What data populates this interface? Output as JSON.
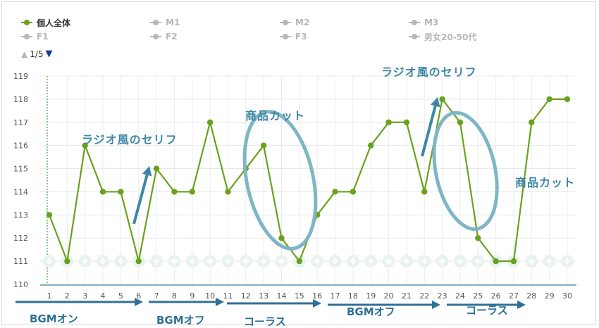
{
  "legend": {
    "items": [
      {
        "label": "個人全体",
        "active": true
      },
      {
        "label": "M1",
        "active": false
      },
      {
        "label": "M2",
        "active": false
      },
      {
        "label": "M3",
        "active": false
      },
      {
        "label": "F1",
        "active": false
      },
      {
        "label": "F2",
        "active": false
      },
      {
        "label": "F3",
        "active": false
      },
      {
        "label": "男女20-50代",
        "active": false
      }
    ],
    "pager": "1/5"
  },
  "colors": {
    "series": "#6aa11d",
    "inactive": "#b8b8b8",
    "annotation": "#3d87a6",
    "ellipse": "#7fb6c6",
    "axis_line": "#3d87a6",
    "timeline_arrow": "#2f7096",
    "pager_down": "#1a3aa0"
  },
  "chart_data": {
    "type": "line",
    "x": [
      1,
      2,
      3,
      4,
      5,
      6,
      7,
      8,
      9,
      10,
      11,
      12,
      13,
      14,
      15,
      16,
      17,
      18,
      19,
      20,
      21,
      22,
      23,
      24,
      25,
      26,
      27,
      28,
      29,
      30
    ],
    "series": [
      {
        "name": "個人全体",
        "values": [
          113,
          111,
          116,
          114,
          114,
          111,
          115,
          114,
          114,
          117,
          114,
          115,
          116,
          112,
          111,
          113,
          114,
          114,
          116,
          117,
          117,
          114,
          118,
          117,
          112,
          111,
          111,
          117,
          118,
          118
        ]
      }
    ],
    "ylim": [
      110,
      119
    ],
    "yticks": [
      "110",
      "111",
      "112",
      "113",
      "114",
      "115",
      "116",
      "117",
      "118",
      "119"
    ],
    "xticks": [
      "1",
      "2",
      "3",
      "4",
      "5",
      "6",
      "7",
      "8",
      "9",
      "10",
      "11",
      "12",
      "13",
      "14",
      "15",
      "16",
      "17",
      "18",
      "19",
      "20",
      "21",
      "22",
      "23",
      "24",
      "25",
      "26",
      "27",
      "28",
      "29",
      "30"
    ],
    "grid": true,
    "legend_position": "top-left",
    "annotations": {
      "texts": [
        "ラジオ風のセリフ",
        "商品カット",
        "ラジオ風のセリフ",
        "商品カット"
      ],
      "timeline_labels": [
        "BGMオン",
        "BGMオフ",
        "コーラス",
        "BGMオフ",
        "コーラス"
      ]
    }
  }
}
